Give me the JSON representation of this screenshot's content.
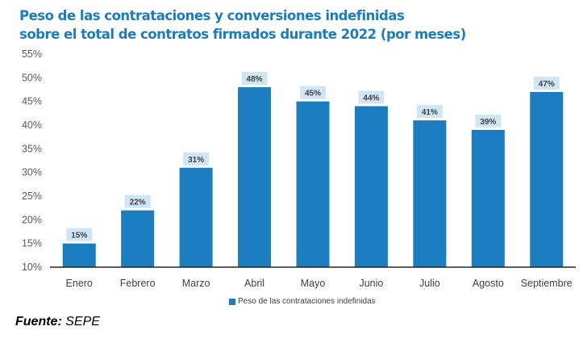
{
  "chart_data": {
    "type": "bar",
    "title_line1": "Peso de las contrataciones y conversiones indefinidas",
    "title_line2": "sobre el total de contratos firmados durante 2022 (por meses)",
    "categories": [
      "Enero",
      "Febrero",
      "Marzo",
      "Abril",
      "Mayo",
      "Junio",
      "Julio",
      "Agosto",
      "Septiembre"
    ],
    "series": [
      {
        "name": "Peso de las contrataciones indefinidas",
        "values": [
          15,
          22,
          31,
          48,
          45,
          44,
          41,
          39,
          47
        ],
        "labels": [
          "15%",
          "22%",
          "31%",
          "48%",
          "45%",
          "44%",
          "41%",
          "39%",
          "47%"
        ]
      }
    ],
    "ylim": [
      10,
      55
    ],
    "yticks": [
      10,
      15,
      20,
      25,
      30,
      35,
      40,
      45,
      50,
      55
    ],
    "ytick_labels": [
      "10%",
      "15%",
      "20%",
      "25%",
      "30%",
      "35%",
      "40%",
      "45%",
      "50%",
      "55%"
    ],
    "legend_position": "bottom",
    "grid": false,
    "colors": {
      "bar": "#1a7dc0",
      "label_bg": "#cfe6f5",
      "title": "#1a7dc0"
    }
  },
  "source": {
    "label": "Fuente:",
    "value": "SEPE"
  }
}
